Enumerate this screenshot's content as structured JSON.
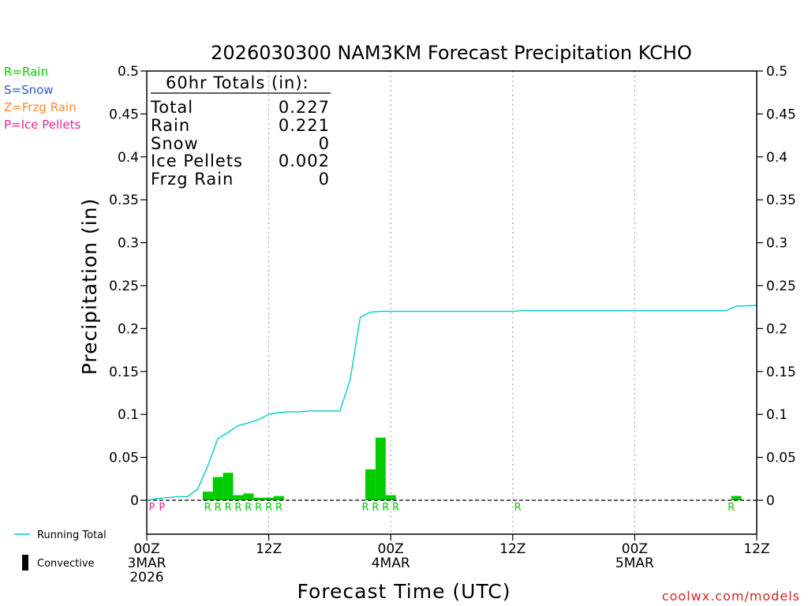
{
  "chart_data": {
    "type": "bar",
    "title": "2026030300 NAM3KM Forecast Precipitation KCHO",
    "xlabel": "Forecast Time (UTC)",
    "ylabel": "Precipitation (in)",
    "ylim": [
      0,
      0.5
    ],
    "yticks": [
      "0",
      "0.05",
      "0.1",
      "0.15",
      "0.2",
      "0.25",
      "0.3",
      "0.35",
      "0.4",
      "0.45",
      "0.5"
    ],
    "xlim_hours": [
      0,
      60
    ],
    "xticks": [
      {
        "hour": 0,
        "lines": [
          "00Z",
          "3MAR",
          "2026"
        ]
      },
      {
        "hour": 12,
        "lines": [
          "12Z"
        ]
      },
      {
        "hour": 24,
        "lines": [
          "00Z",
          "4MAR"
        ]
      },
      {
        "hour": 36,
        "lines": [
          "12Z"
        ]
      },
      {
        "hour": 48,
        "lines": [
          "00Z",
          "5MAR"
        ]
      },
      {
        "hour": 60,
        "lines": [
          "12Z"
        ]
      }
    ],
    "grid_vertical_hours": [
      12,
      24,
      36,
      48
    ],
    "hourly_precip": [
      {
        "hour": 6,
        "value": 0.01
      },
      {
        "hour": 7,
        "value": 0.027
      },
      {
        "hour": 8,
        "value": 0.032
      },
      {
        "hour": 9,
        "value": 0.006
      },
      {
        "hour": 10,
        "value": 0.008
      },
      {
        "hour": 11,
        "value": 0.003
      },
      {
        "hour": 12,
        "value": 0.003
      },
      {
        "hour": 13,
        "value": 0.005
      },
      {
        "hour": 22,
        "value": 0.036
      },
      {
        "hour": 23,
        "value": 0.073
      },
      {
        "hour": 24,
        "value": 0.006
      },
      {
        "hour": 58,
        "value": 0.005
      }
    ],
    "running_total": {
      "name": "Running Total",
      "points": [
        [
          0,
          0.0
        ],
        [
          1,
          0.002
        ],
        [
          2,
          0.003
        ],
        [
          3,
          0.004
        ],
        [
          4,
          0.004
        ],
        [
          5,
          0.013
        ],
        [
          6,
          0.04
        ],
        [
          7,
          0.072
        ],
        [
          8,
          0.079
        ],
        [
          9,
          0.087
        ],
        [
          10,
          0.09
        ],
        [
          11,
          0.094
        ],
        [
          12,
          0.1
        ],
        [
          13,
          0.102
        ],
        [
          14,
          0.103
        ],
        [
          15,
          0.103
        ],
        [
          16,
          0.104
        ],
        [
          17,
          0.104
        ],
        [
          18,
          0.104
        ],
        [
          19,
          0.104
        ],
        [
          20,
          0.14
        ],
        [
          21,
          0.213
        ],
        [
          22,
          0.219
        ],
        [
          23,
          0.22
        ],
        [
          24,
          0.22
        ],
        [
          25,
          0.22
        ],
        [
          36,
          0.22
        ],
        [
          37,
          0.221
        ],
        [
          57,
          0.221
        ],
        [
          58,
          0.226
        ],
        [
          60,
          0.227
        ]
      ]
    },
    "type_markers": [
      {
        "hour": 0.5,
        "letter": "P",
        "type": "ice_pellets"
      },
      {
        "hour": 1.5,
        "letter": "P",
        "type": "ice_pellets"
      },
      {
        "hour": 6,
        "letter": "R",
        "type": "rain"
      },
      {
        "hour": 7,
        "letter": "R",
        "type": "rain"
      },
      {
        "hour": 8,
        "letter": "R",
        "type": "rain"
      },
      {
        "hour": 9,
        "letter": "R",
        "type": "rain"
      },
      {
        "hour": 10,
        "letter": "R",
        "type": "rain"
      },
      {
        "hour": 11,
        "letter": "R",
        "type": "rain"
      },
      {
        "hour": 12,
        "letter": "R",
        "type": "rain"
      },
      {
        "hour": 13,
        "letter": "R",
        "type": "rain"
      },
      {
        "hour": 21.5,
        "letter": "R",
        "type": "rain"
      },
      {
        "hour": 22.5,
        "letter": "R",
        "type": "rain"
      },
      {
        "hour": 23.5,
        "letter": "R",
        "type": "rain"
      },
      {
        "hour": 24.5,
        "letter": "R",
        "type": "rain"
      },
      {
        "hour": 36.5,
        "letter": "R",
        "type": "rain"
      },
      {
        "hour": 57.5,
        "letter": "R",
        "type": "rain"
      }
    ],
    "colors": {
      "rain": "#00cc00",
      "snow": "#3355dd",
      "frzg_rain": "#ff8833",
      "ice_pellets": "#ee2299",
      "running_total": "#00cccc",
      "convective": "#000000"
    }
  },
  "type_legend": [
    {
      "label": "R=Rain",
      "type": "rain"
    },
    {
      "label": "S=Snow",
      "type": "snow"
    },
    {
      "label": "Z=Frzg Rain",
      "type": "frzg_rain"
    },
    {
      "label": "P=Ice Pellets",
      "type": "ice_pellets"
    }
  ],
  "totals_box": {
    "header": "60hr Totals (in):",
    "rows": [
      {
        "label": "Total",
        "value": "0.227"
      },
      {
        "label": "Rain",
        "value": "0.221"
      },
      {
        "label": "Snow",
        "value": "0"
      },
      {
        "label": "Ice Pellets",
        "value": "0.002"
      },
      {
        "label": "Frzg Rain",
        "value": "0"
      }
    ]
  },
  "series_legend": {
    "running_total": "Running Total",
    "convective": "Convective"
  },
  "credit": "coolwx.com/models"
}
